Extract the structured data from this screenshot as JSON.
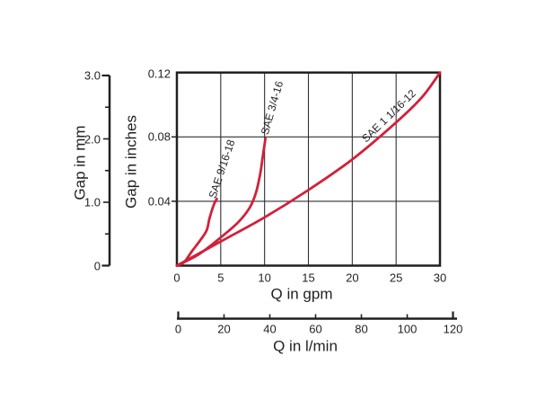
{
  "figure": {
    "background": "#ffffff",
    "ink_color": "#231f20",
    "curve_color": "#d2203a"
  },
  "chart_data": {
    "type": "line",
    "title": "",
    "description": "Gap versus flow rate Q for three SAE port sizes",
    "grid": "on",
    "legend_position": "labels-along-curves",
    "axes": {
      "left_mm": {
        "label": "Gap in mm",
        "range": [
          0,
          3.0
        ],
        "tick_labels": [
          "0",
          "1.0",
          "2.0",
          "3.0"
        ],
        "tick_values": [
          0,
          1,
          2,
          3
        ],
        "minor_tick_values": [
          0.5,
          1.5,
          2.5
        ]
      },
      "left_inches": {
        "label": "Gap in inches",
        "range": [
          0,
          0.12
        ],
        "tick_labels": [
          "0.04",
          "0.08",
          "0.12"
        ],
        "tick_values": [
          0.04,
          0.08,
          0.12
        ]
      },
      "bottom_gpm": {
        "label": "Q in gpm",
        "range": [
          0,
          30
        ],
        "tick_labels": [
          "0",
          "5",
          "10",
          "15",
          "20",
          "25",
          "30"
        ],
        "tick_values": [
          0,
          5,
          10,
          15,
          20,
          25,
          30
        ]
      },
      "bottom_lmin": {
        "label": "Q in l/min",
        "range": [
          0,
          120
        ],
        "tick_labels": [
          "0",
          "20",
          "40",
          "60",
          "80",
          "100",
          "120"
        ],
        "tick_values": [
          0,
          20,
          40,
          60,
          80,
          100,
          120
        ]
      }
    },
    "gridlines": {
      "vertical_gpm": [
        5,
        10,
        15,
        20,
        25
      ],
      "horizontal_inches": [
        0.04,
        0.08
      ]
    },
    "series": [
      {
        "name": "SAE 9/16-18",
        "x_unit": "gpm",
        "y_unit": "inches",
        "points": [
          [
            0,
            0
          ],
          [
            0.8,
            0.002
          ],
          [
            1.7,
            0.0088
          ],
          [
            2.7,
            0.016
          ],
          [
            3.4,
            0.022
          ],
          [
            3.7,
            0.029
          ],
          [
            4.0,
            0.0345
          ],
          [
            4.3,
            0.039
          ],
          [
            4.55,
            0.0415
          ]
        ],
        "label_angle_deg": -71.5
      },
      {
        "name": "SAE 3/4-16",
        "x_unit": "gpm",
        "y_unit": "inches",
        "points": [
          [
            0,
            0
          ],
          [
            2.5,
            0.007
          ],
          [
            5,
            0.0175
          ],
          [
            7,
            0.027
          ],
          [
            8.3,
            0.036
          ],
          [
            9,
            0.045
          ],
          [
            9.5,
            0.057
          ],
          [
            9.8,
            0.068
          ],
          [
            10.1,
            0.079
          ]
        ],
        "label_angle_deg": -74
      },
      {
        "name": "SAE 1 1/16-12",
        "x_unit": "gpm",
        "y_unit": "inches",
        "points": [
          [
            0,
            0
          ],
          [
            5,
            0.015
          ],
          [
            10,
            0.03
          ],
          [
            15,
            0.047
          ],
          [
            20,
            0.066
          ],
          [
            25,
            0.089
          ],
          [
            28,
            0.105
          ],
          [
            30,
            0.12
          ]
        ],
        "label_angle_deg": -44
      }
    ]
  }
}
